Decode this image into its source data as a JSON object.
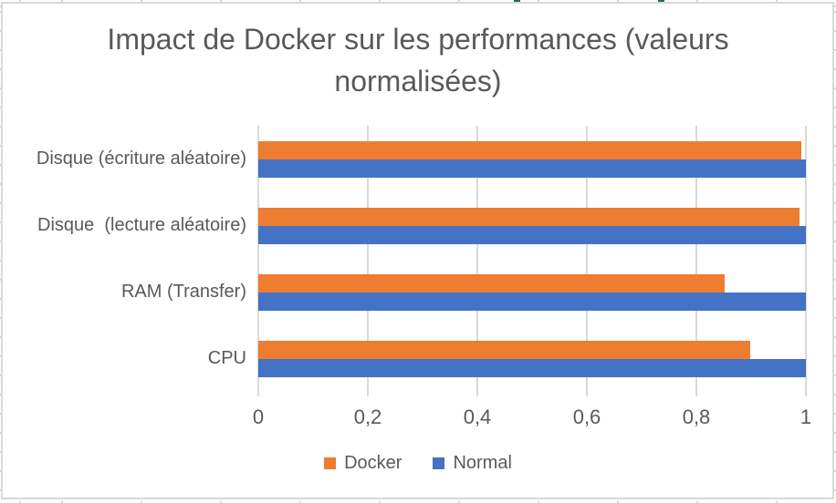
{
  "chart_data": {
    "type": "bar",
    "orientation": "horizontal",
    "title": "Impact de Docker sur les performances (valeurs normalisées)",
    "categories_top_to_bottom": [
      "Disque (écriture aléatoire)",
      "Disque  (lecture aléatoire)",
      "RAM (Transfer)",
      "CPU"
    ],
    "series": [
      {
        "name": "Docker",
        "color": "#ED7D31",
        "values_top_to_bottom": [
          0.992,
          0.988,
          0.852,
          0.898
        ]
      },
      {
        "name": "Normal",
        "color": "#4472C4",
        "values_top_to_bottom": [
          1.0,
          1.0,
          1.0,
          1.0
        ]
      }
    ],
    "x_axis": {
      "min": 0,
      "max": 1,
      "tick_values": [
        0,
        0.2,
        0.4,
        0.6,
        0.8,
        1
      ],
      "tick_labels": [
        "0",
        "0,2",
        "0,4",
        "0,6",
        "0,8",
        "1"
      ]
    },
    "grid": "vertical-gridlines-on",
    "legend_position": "bottom",
    "colors": {
      "text": "#595959",
      "gridline": "#D9D9D9",
      "frame_border": "#D9D9D9"
    }
  }
}
